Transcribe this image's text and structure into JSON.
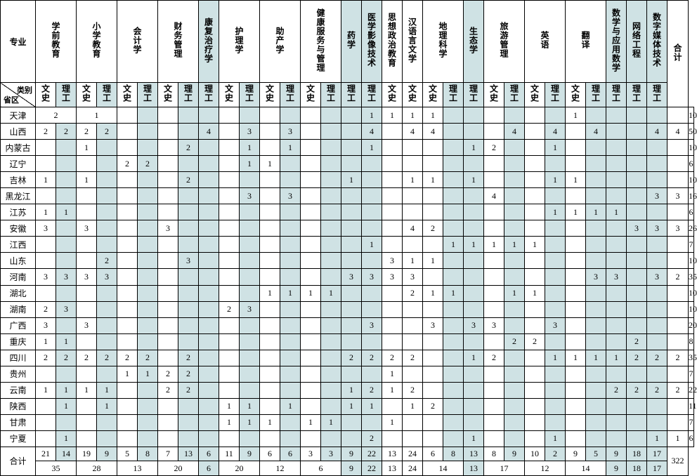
{
  "columns": {
    "major_label": "专业",
    "diag_top": "类别",
    "diag_bottom": "省区",
    "total_label": "合计",
    "majors": [
      {
        "name": "学前教育",
        "sub": [
          "文史",
          "理工"
        ],
        "hl": [
          false,
          true
        ],
        "span": 2
      },
      {
        "name": "小学教育",
        "sub": [
          "文史",
          "理工"
        ],
        "hl": [
          false,
          true
        ],
        "span": 2
      },
      {
        "name": "会计学",
        "sub": [
          "文史",
          "理工"
        ],
        "hl": [
          false,
          true
        ],
        "span": 2
      },
      {
        "name": "财务管理",
        "sub": [
          "文史",
          "理工"
        ],
        "hl": [
          false,
          true
        ],
        "span": 2
      },
      {
        "name": "康复治疗学",
        "sub": [
          "理工"
        ],
        "hl": [
          true
        ],
        "span": 1,
        "col_hl": true
      },
      {
        "name": "护理学",
        "sub": [
          "文史",
          "理工"
        ],
        "hl": [
          false,
          true
        ],
        "span": 2
      },
      {
        "name": "助产学",
        "sub": [
          "文史",
          "理工"
        ],
        "hl": [
          false,
          true
        ],
        "span": 2
      },
      {
        "name": "健康服务与管理",
        "sub": [
          "文史",
          "理工"
        ],
        "hl": [
          false,
          true
        ],
        "span": 2
      },
      {
        "name": "药学",
        "sub": [
          "理工"
        ],
        "hl": [
          true
        ],
        "span": 1,
        "col_hl": true
      },
      {
        "name": "医学影像技术",
        "sub": [
          "理工"
        ],
        "hl": [
          true
        ],
        "span": 1,
        "col_hl": true
      },
      {
        "name": "思想政治教育",
        "sub": [
          "文史"
        ],
        "hl": [
          false
        ],
        "span": 1
      },
      {
        "name": "汉语言文学",
        "sub": [
          "文史"
        ],
        "hl": [
          false
        ],
        "span": 1
      },
      {
        "name": "地理科学",
        "sub": [
          "文史",
          "理工"
        ],
        "hl": [
          false,
          true
        ],
        "span": 2
      },
      {
        "name": "生态学",
        "sub": [
          "理工"
        ],
        "hl": [
          true
        ],
        "span": 1,
        "col_hl": true
      },
      {
        "name": "旅游管理",
        "sub": [
          "文史",
          "理工"
        ],
        "hl": [
          false,
          true
        ],
        "span": 2
      },
      {
        "name": "英语",
        "sub": [
          "文史",
          "理工"
        ],
        "hl": [
          false,
          true
        ],
        "span": 2
      },
      {
        "name": "翻译",
        "sub": [
          "文史",
          "理工"
        ],
        "hl": [
          false,
          true
        ],
        "span": 2
      },
      {
        "name": "数学与应用数学",
        "sub": [
          "理工"
        ],
        "hl": [
          true
        ],
        "span": 1,
        "col_hl": true
      },
      {
        "name": "网络工程",
        "sub": [
          "理工"
        ],
        "hl": [
          true
        ],
        "span": 1,
        "col_hl": true
      },
      {
        "name": "数字媒体技术",
        "sub": [
          "理工"
        ],
        "hl": [
          true
        ],
        "span": 1,
        "col_hl": true
      }
    ]
  },
  "rows": [
    {
      "prov": "天津",
      "cells": [
        {
          "v": "2",
          "span": 2
        },
        {
          "v": "1",
          "span": 2
        },
        "",
        "",
        "",
        "",
        "",
        "",
        "",
        "",
        "",
        "",
        "",
        "",
        "1",
        "1",
        "1",
        "1",
        "",
        "",
        "",
        "",
        "",
        "",
        "1",
        "",
        "",
        "",
        "",
        "",
        "10"
      ]
    },
    {
      "prov": "山西",
      "cells": [
        "2",
        "2",
        "2",
        "2",
        "",
        "",
        "",
        "",
        "4",
        "",
        "3",
        "",
        "3",
        "",
        "",
        "",
        "4",
        "",
        "4",
        "4",
        "",
        "",
        "",
        "4",
        "",
        "4",
        "",
        "4",
        "",
        "",
        "4",
        "4",
        "50"
      ]
    },
    {
      "prov": "内蒙古",
      "cells": [
        "",
        "",
        "1",
        "",
        "",
        "",
        "",
        "2",
        "",
        "",
        "1",
        "",
        "1",
        "",
        "",
        "",
        "1",
        "",
        "",
        "",
        "",
        "1",
        "2",
        "",
        "",
        "1",
        "",
        "",
        "",
        "",
        "",
        "",
        "10"
      ]
    },
    {
      "prov": "辽宁",
      "cells": [
        "",
        "",
        "",
        "",
        "2",
        "2",
        "",
        "",
        "",
        "",
        "1",
        "1",
        "",
        "",
        "",
        "",
        "",
        "",
        "",
        "",
        "",
        "",
        "",
        "",
        "",
        "",
        "",
        "",
        "",
        "",
        "",
        "",
        "6"
      ]
    },
    {
      "prov": "吉林",
      "cells": [
        "1",
        "",
        "1",
        "",
        "",
        "",
        "",
        "2",
        "",
        "",
        "",
        "",
        "",
        "",
        "",
        "1",
        "",
        "",
        "1",
        "1",
        "",
        "1",
        "",
        "",
        "",
        "1",
        "1",
        "",
        "",
        "",
        "",
        "",
        "10"
      ]
    },
    {
      "prov": "黑龙江",
      "cells": [
        "",
        "",
        "",
        "",
        "",
        "",
        "",
        "",
        "",
        "",
        "3",
        "",
        "3",
        "",
        "",
        "",
        "",
        "",
        "",
        "",
        "",
        "",
        "4",
        "",
        "",
        "",
        "",
        "",
        "",
        "",
        "3",
        "3",
        "16"
      ]
    },
    {
      "prov": "江苏",
      "cells": [
        "1",
        "1",
        "",
        "",
        "",
        "",
        "",
        "",
        "",
        "",
        "",
        "",
        "",
        "",
        "",
        "",
        "",
        "",
        "",
        "",
        "",
        "",
        "",
        "",
        "",
        "1",
        "1",
        "1",
        "1",
        "",
        "",
        "",
        "6"
      ]
    },
    {
      "prov": "安徽",
      "cells": [
        "3",
        "",
        "3",
        "",
        "",
        "",
        "3",
        "",
        "",
        "",
        "",
        "",
        "",
        "",
        "",
        "",
        "",
        "",
        "4",
        "2",
        "",
        "",
        "",
        "",
        "",
        "",
        "",
        "",
        "",
        "3",
        "3",
        "3",
        "26"
      ]
    },
    {
      "prov": "江西",
      "cells": [
        "",
        "",
        "",
        "",
        "",
        "",
        "",
        "",
        "",
        "",
        "",
        "",
        "",
        "",
        "",
        "",
        "1",
        "",
        "",
        "",
        "1",
        "1",
        "1",
        "1",
        "1",
        "",
        "",
        "",
        "",
        "",
        "",
        "",
        "7"
      ]
    },
    {
      "prov": "山东",
      "cells": [
        "",
        "",
        "",
        "2",
        "",
        "",
        "",
        "3",
        "",
        "",
        "",
        "",
        "",
        "",
        "",
        "",
        "",
        "3",
        "1",
        "1",
        "",
        "",
        "",
        "",
        "",
        "",
        "",
        "",
        "",
        "",
        "",
        "",
        "10"
      ]
    },
    {
      "prov": "河南",
      "cells": [
        "3",
        "3",
        "3",
        "3",
        "",
        "",
        "",
        "",
        "",
        "",
        "",
        "",
        "",
        "",
        "",
        "3",
        "3",
        "3",
        "3",
        "",
        "",
        "",
        "",
        "",
        "",
        "",
        "",
        "3",
        "3",
        "",
        "3",
        "2",
        "35"
      ]
    },
    {
      "prov": "湖北",
      "cells": [
        "",
        "",
        "",
        "",
        "",
        "",
        "",
        "",
        "",
        "",
        "",
        "1",
        "1",
        "1",
        "1",
        "",
        "",
        "",
        "2",
        "1",
        "1",
        "",
        "",
        "1",
        "1",
        "",
        "",
        "",
        "",
        "",
        "",
        "",
        "10"
      ]
    },
    {
      "prov": "湖南",
      "cells": [
        "2",
        "3",
        "",
        "",
        "",
        "",
        "",
        "",
        "",
        "2",
        "3",
        "",
        "",
        "",
        "",
        "",
        "",
        "",
        "",
        "",
        "",
        "",
        "",
        "",
        "",
        "",
        "",
        "",
        "",
        "",
        "",
        "",
        "10"
      ]
    },
    {
      "prov": "广西",
      "cells": [
        "3",
        "",
        "3",
        "",
        "",
        "",
        "",
        "",
        "",
        "",
        "",
        "",
        "",
        "",
        "",
        "",
        "3",
        "",
        "",
        "3",
        "",
        "3",
        "3",
        "",
        "",
        "3",
        "",
        "",
        "",
        "",
        "",
        "",
        "20"
      ]
    },
    {
      "prov": "重庆",
      "cells": [
        "1",
        "1",
        "",
        "",
        "",
        "",
        "",
        "",
        "",
        "",
        "",
        "",
        "",
        "",
        "",
        "",
        "",
        "",
        "",
        "",
        "",
        "",
        "",
        "2",
        "2",
        "",
        "",
        "",
        "",
        "2",
        "",
        "",
        "8"
      ]
    },
    {
      "prov": "四川",
      "cells": [
        "2",
        "2",
        "2",
        "2",
        "2",
        "2",
        "",
        "2",
        "",
        "",
        "",
        "",
        "",
        "",
        "",
        "2",
        "2",
        "2",
        "2",
        "",
        "",
        "1",
        "2",
        "",
        "",
        "1",
        "1",
        "1",
        "1",
        "2",
        "2",
        "2",
        "35"
      ]
    },
    {
      "prov": "贵州",
      "cells": [
        "",
        "",
        "",
        "",
        "1",
        "1",
        "2",
        "2",
        "",
        "",
        "",
        "",
        "",
        "",
        "",
        "",
        "",
        "1",
        "",
        "",
        "",
        "",
        "",
        "",
        "",
        "",
        "",
        "",
        "",
        "",
        "",
        "",
        "7"
      ]
    },
    {
      "prov": "云南",
      "cells": [
        "1",
        "1",
        "1",
        "1",
        "",
        "",
        "2",
        "2",
        "",
        "",
        "",
        "",
        "",
        "",
        "",
        "1",
        "2",
        "1",
        "2",
        "",
        "",
        "",
        "",
        "",
        "",
        "",
        "",
        "",
        "2",
        "2",
        "2",
        "2",
        "22"
      ]
    },
    {
      "prov": "陕西",
      "cells": [
        "",
        "1",
        "",
        "1",
        "",
        "",
        "",
        "",
        "",
        "1",
        "1",
        "",
        "1",
        "",
        "",
        "1",
        "1",
        "",
        "1",
        "2",
        "",
        "",
        "",
        "",
        "",
        "",
        "",
        "",
        "",
        "",
        "",
        "",
        "11"
      ]
    },
    {
      "prov": "甘肃",
      "cells": [
        "",
        "",
        "",
        "",
        "",
        "",
        "",
        "",
        "",
        "1",
        "1",
        "1",
        "",
        "1",
        "1",
        "",
        "",
        "1",
        "",
        "",
        "",
        "",
        "",
        "",
        "",
        "",
        "",
        "",
        "",
        "",
        "",
        "",
        "7"
      ]
    },
    {
      "prov": "宁夏",
      "cells": [
        "",
        "1",
        "",
        "",
        "",
        "",
        "",
        "",
        "",
        "",
        "",
        "",
        "",
        "",
        "",
        "",
        "2",
        "",
        "",
        "",
        "",
        "1",
        "",
        "",
        "",
        "1",
        "",
        "",
        "",
        "",
        "1",
        "1",
        "6"
      ]
    }
  ],
  "totals": {
    "label": "合计",
    "upper": [
      "21",
      "14",
      "19",
      "9",
      "5",
      "8",
      "7",
      "13",
      "6",
      "11",
      "9",
      "6",
      "6",
      "3",
      "3",
      "9",
      "22",
      "13",
      "24",
      "6",
      "8",
      "13",
      "8",
      "9",
      "10",
      "2",
      "9",
      "5",
      "9",
      "18",
      "17",
      {
        "v": "322",
        "span": 2
      }
    ],
    "lower": [
      {
        "v": "35",
        "span": 2
      },
      {
        "v": "28",
        "span": 2
      },
      {
        "v": "13",
        "span": 2
      },
      {
        "v": "20",
        "span": 2
      },
      "6",
      {
        "v": "20",
        "span": 2
      },
      {
        "v": "12",
        "span": 2
      },
      {
        "v": "6",
        "span": 2
      },
      "9",
      "22",
      "13",
      "24",
      {
        "v": "14",
        "span": 2
      },
      "13",
      {
        "v": "17",
        "span": 2
      },
      {
        "v": "12",
        "span": 2
      },
      {
        "v": "14",
        "span": 2
      },
      "9",
      "18",
      "17"
    ]
  },
  "hl_color": "#cfe2e4"
}
